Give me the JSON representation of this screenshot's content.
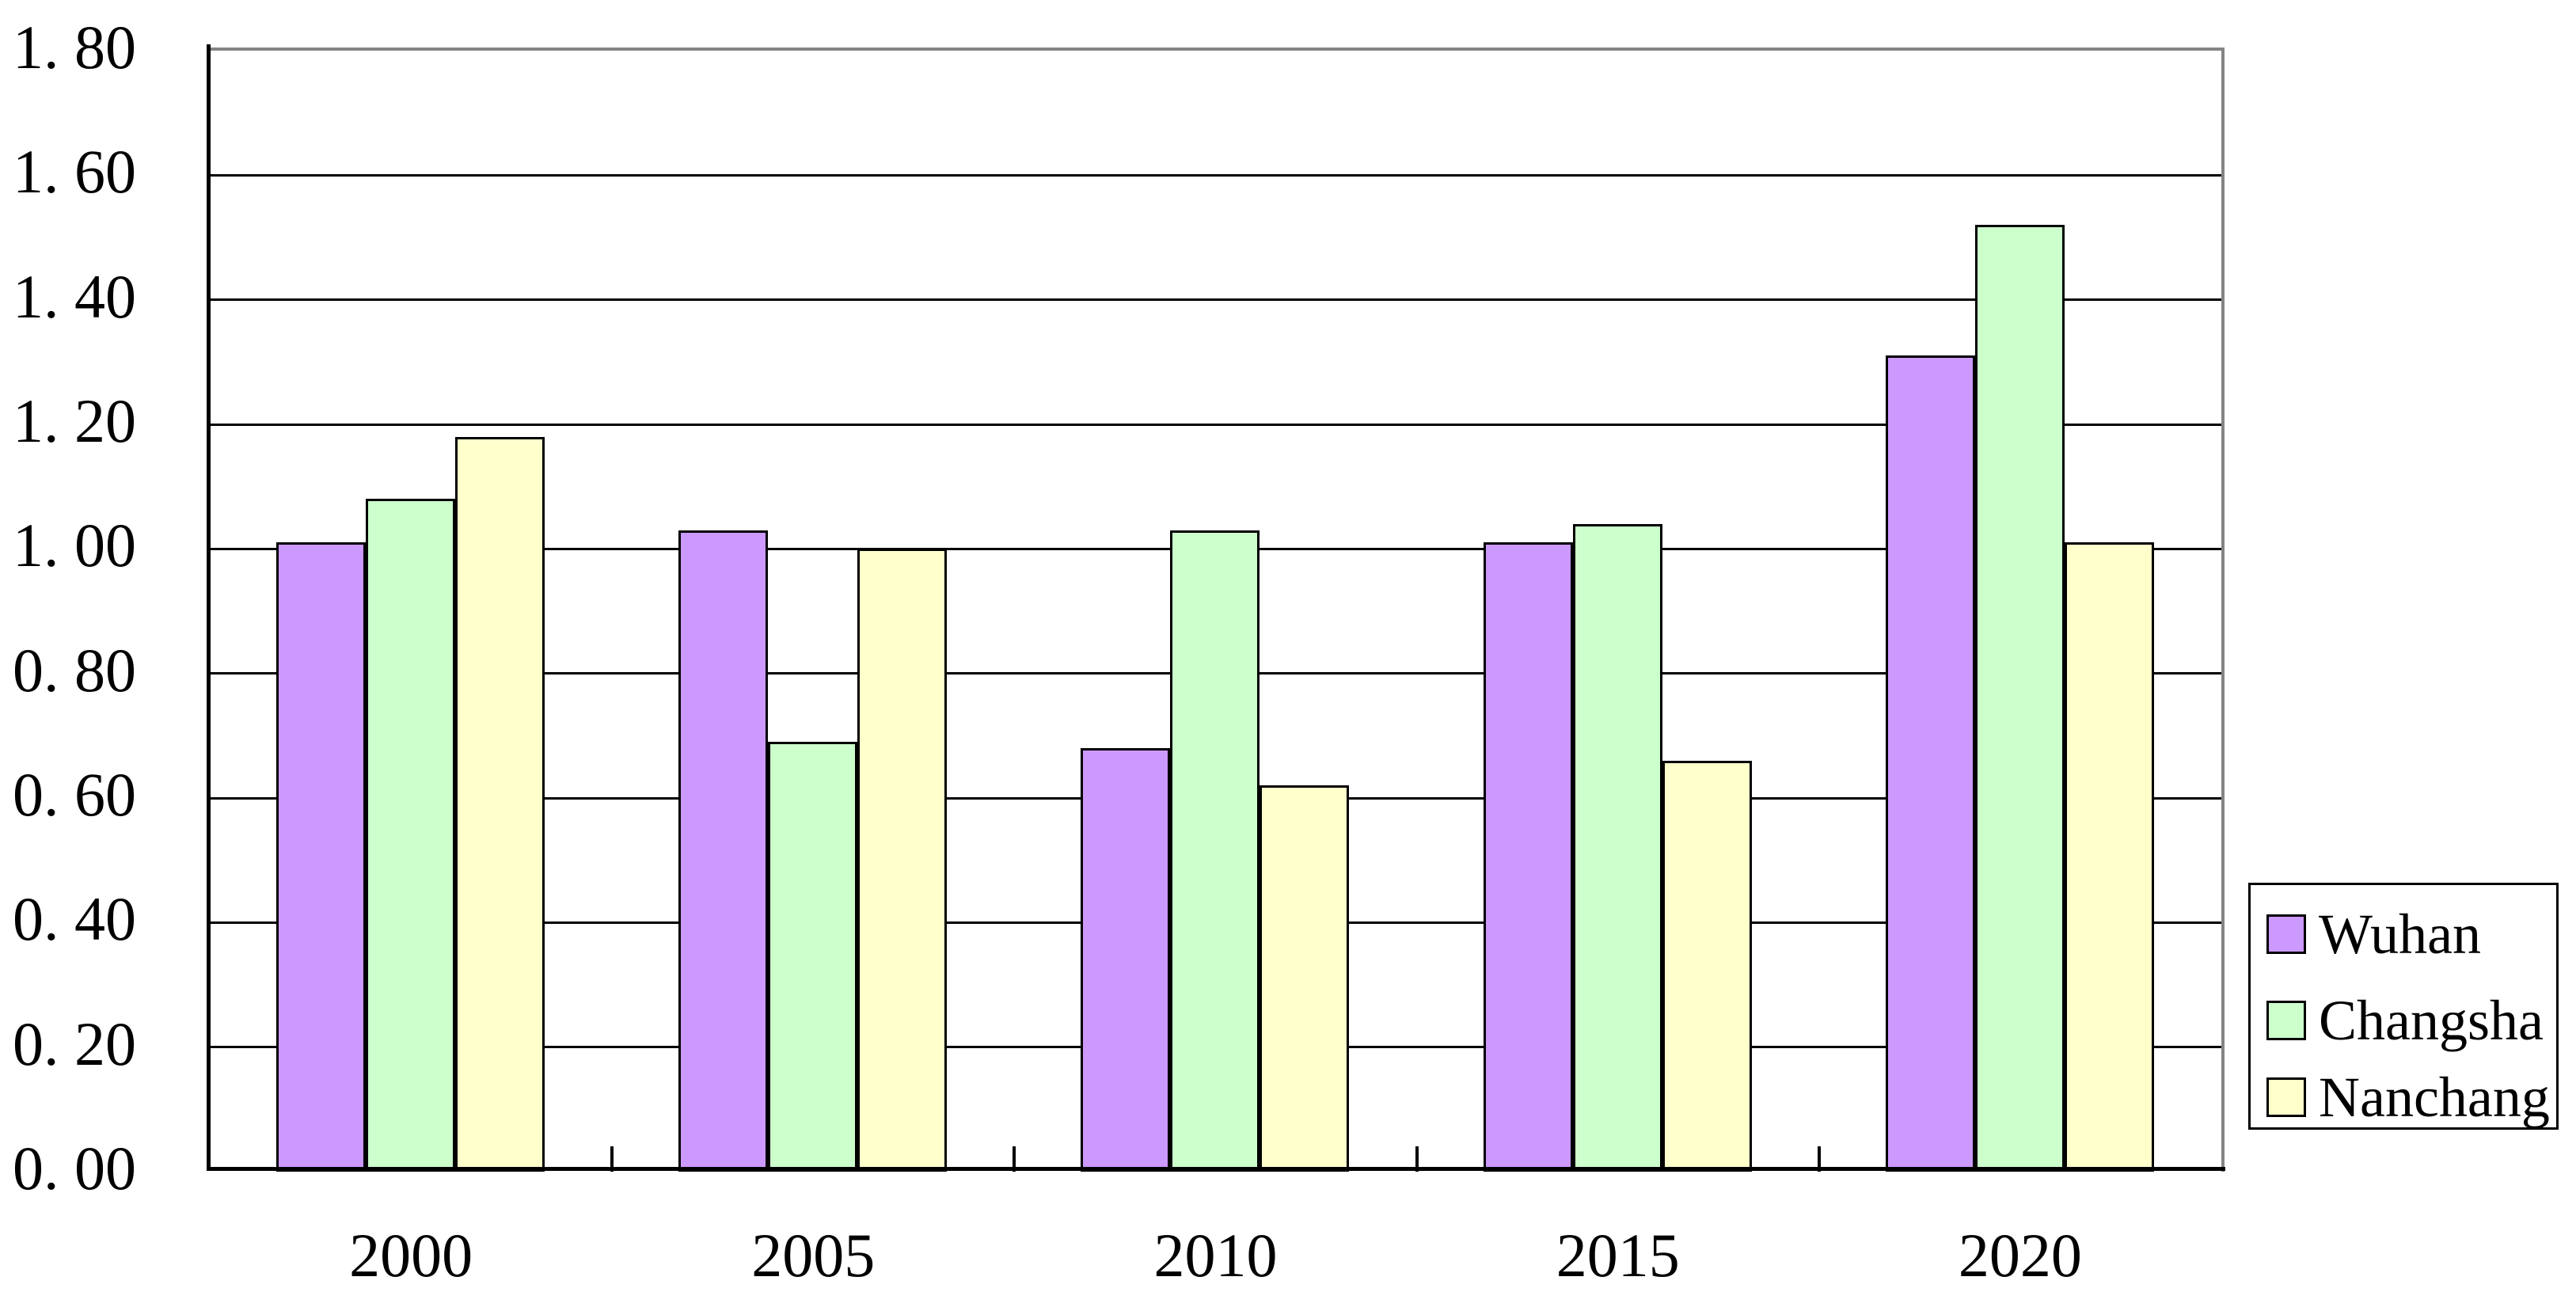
{
  "chart_data": {
    "type": "bar",
    "title": "",
    "categories": [
      "2000",
      "2005",
      "2010",
      "2015",
      "2020"
    ],
    "series": [
      {
        "name": "Wuhan",
        "color": "#CC99FF",
        "values": [
          1.01,
          1.03,
          0.68,
          1.01,
          1.31
        ]
      },
      {
        "name": "Changsha",
        "color": "#CCFFCC",
        "values": [
          1.08,
          0.69,
          1.03,
          1.04,
          1.52
        ]
      },
      {
        "name": "Nanchang",
        "color": "#FFFFCC",
        "values": [
          1.18,
          1.0,
          0.62,
          0.66,
          1.01
        ]
      }
    ],
    "ylim": [
      0.0,
      1.8
    ],
    "ytick_step": 0.2,
    "y_tick_labels": [
      "0. 00",
      "0. 20",
      "0. 40",
      "0. 60",
      "0. 80",
      "1. 00",
      "1. 20",
      "1. 40",
      "1. 60",
      "1. 80"
    ],
    "x_tick_labels": [
      "2000",
      "2005",
      "2010",
      "2015",
      "2020"
    ],
    "grid": true,
    "legend_position": "right",
    "legend_labels": [
      "Wuhan",
      "Changsha",
      "Nanchang"
    ],
    "colors": {
      "background": "#FFFFFF",
      "axis_line": "#000000",
      "gridline": "#000000",
      "plot_border": "#848484",
      "bar_border": "#000000",
      "text": "#000000"
    }
  }
}
